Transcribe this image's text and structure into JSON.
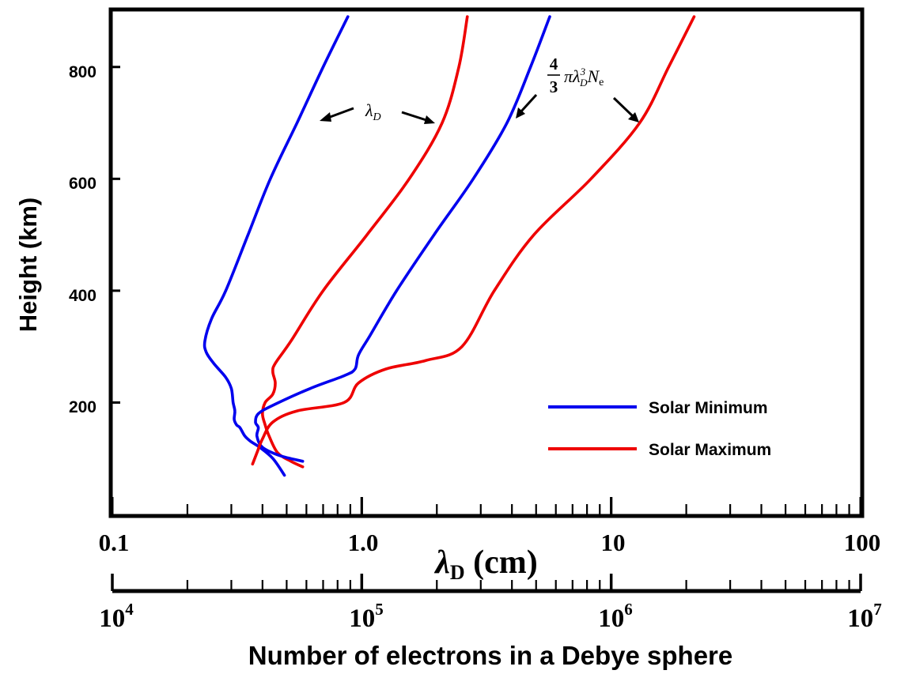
{
  "chart_data": {
    "type": "line",
    "ylabel": "Height (km)",
    "xlabel_symbol": "λ",
    "xlabel_sub": "D",
    "xlabel_unit": " (cm)",
    "x2label": "Number of electrons in a Debye sphere",
    "xscale": "log",
    "xlim": [
      0.1,
      100
    ],
    "ylim": [
      0,
      900
    ],
    "x2lim": [
      10000,
      10000000
    ],
    "yticks": [
      200,
      400,
      600,
      800
    ],
    "ytick_labels": [
      "200",
      "400",
      "600",
      "800"
    ],
    "xtick_labels": [
      "0.1",
      "1.0",
      "10",
      "100"
    ],
    "x2tick_base": "10",
    "x2tick_exponents": [
      "4",
      "5",
      "6",
      "7"
    ],
    "legend": {
      "position": "bottom-right",
      "entries": [
        {
          "label": "Solar Minimum",
          "color": "#0000ee"
        },
        {
          "label": "Solar Maximum",
          "color": "#ee0000"
        }
      ]
    },
    "annotations": {
      "lambda_label": {
        "symbol": "λ",
        "sub": "D"
      },
      "number_label": {
        "frac_num": "4",
        "frac_den": "3",
        "pi": "π",
        "lambda": "λ",
        "sub": "D",
        "sup": "3",
        "N": "N",
        "N_sub": "e"
      }
    },
    "series": [
      {
        "color": "#0000ee",
        "axis": "lambda_D",
        "points": [
          [
            0.88,
            890
          ],
          [
            0.7,
            800
          ],
          [
            0.55,
            700
          ],
          [
            0.43,
            600
          ],
          [
            0.35,
            500
          ],
          [
            0.285,
            400
          ],
          [
            0.25,
            350
          ],
          [
            0.235,
            310
          ],
          [
            0.238,
            290
          ],
          [
            0.255,
            270
          ],
          [
            0.285,
            245
          ],
          [
            0.3,
            225
          ],
          [
            0.305,
            200
          ],
          [
            0.31,
            185
          ],
          [
            0.308,
            170
          ],
          [
            0.315,
            160
          ],
          [
            0.325,
            155
          ],
          [
            0.34,
            140
          ],
          [
            0.36,
            130
          ],
          [
            0.39,
            120
          ],
          [
            0.44,
            100
          ],
          [
            0.49,
            70
          ]
        ]
      },
      {
        "color": "#ee0000",
        "axis": "lambda_D",
        "points": [
          [
            2.65,
            890
          ],
          [
            2.45,
            800
          ],
          [
            2.1,
            700
          ],
          [
            1.55,
            600
          ],
          [
            1.05,
            500
          ],
          [
            0.7,
            400
          ],
          [
            0.52,
            310
          ],
          [
            0.45,
            270
          ],
          [
            0.44,
            255
          ],
          [
            0.45,
            235
          ],
          [
            0.44,
            215
          ],
          [
            0.41,
            200
          ],
          [
            0.4,
            180
          ],
          [
            0.41,
            160
          ],
          [
            0.425,
            140
          ],
          [
            0.46,
            110
          ],
          [
            0.52,
            95
          ],
          [
            0.58,
            85
          ]
        ]
      },
      {
        "color": "#0000ee",
        "axis": "electrons",
        "points": [
          [
            567000,
            890
          ],
          [
            475000,
            800
          ],
          [
            382000,
            700
          ],
          [
            280000,
            600
          ],
          [
            195000,
            500
          ],
          [
            138000,
            400
          ],
          [
            108000,
            320
          ],
          [
            97000,
            285
          ],
          [
            94000,
            260
          ],
          [
            85000,
            248
          ],
          [
            62000,
            225
          ],
          [
            44000,
            195
          ],
          [
            38500,
            180
          ],
          [
            37500,
            165
          ],
          [
            38500,
            155
          ],
          [
            38000,
            140
          ],
          [
            40000,
            120
          ],
          [
            47000,
            105
          ],
          [
            58000,
            95
          ]
        ]
      },
      {
        "color": "#ee0000",
        "axis": "electrons",
        "points": [
          [
            2150000,
            890
          ],
          [
            1700000,
            800
          ],
          [
            1300000,
            700
          ],
          [
            830000,
            600
          ],
          [
            490000,
            500
          ],
          [
            340000,
            400
          ],
          [
            252000,
            300
          ],
          [
            180000,
            275
          ],
          [
            125000,
            260
          ],
          [
            97000,
            235
          ],
          [
            85000,
            200
          ],
          [
            55000,
            185
          ],
          [
            44000,
            165
          ],
          [
            40000,
            135
          ],
          [
            38000,
            110
          ],
          [
            36500,
            90
          ]
        ]
      }
    ]
  }
}
